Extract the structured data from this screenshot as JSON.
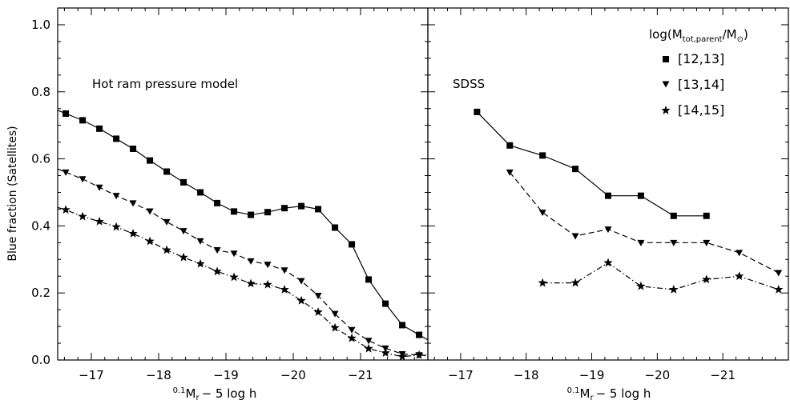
{
  "chart_data": [
    {
      "type": "line",
      "panel": "left",
      "annotation": "Hot ram pressure model",
      "xlabel_prefix": "0.1",
      "xlabel_main": "M",
      "xlabel_sub": "r",
      "xlabel_suffix": "− 5 log h",
      "ylabel": "Blue fraction (Satellites)",
      "xlim": [
        -16.5,
        -22.0
      ],
      "ylim": [
        0.0,
        1.05
      ],
      "x_ticks": [
        -17,
        -18,
        -19,
        -20,
        -21
      ],
      "x_tick_labels": [
        "−17",
        "−18",
        "−19",
        "−20",
        "−21"
      ],
      "y_ticks": [
        0.0,
        0.2,
        0.4,
        0.6,
        0.8,
        1.0
      ],
      "y_tick_labels": [
        "0.0",
        "0.2",
        "0.4",
        "0.6",
        "0.8",
        "1.0"
      ],
      "series": [
        {
          "marker": "square",
          "linestyle": "solid",
          "x": [
            -16.5,
            -16.62,
            -16.87,
            -17.12,
            -17.37,
            -17.62,
            -17.87,
            -18.12,
            -18.37,
            -18.62,
            -18.87,
            -19.12,
            -19.37,
            -19.62,
            -19.87,
            -20.12,
            -20.37,
            -20.62,
            -20.87,
            -21.12,
            -21.37,
            -21.62,
            -21.87,
            -22.0
          ],
          "y": [
            0.745,
            0.735,
            0.715,
            0.69,
            0.66,
            0.63,
            0.595,
            0.562,
            0.53,
            0.5,
            0.468,
            0.443,
            0.433,
            0.441,
            0.453,
            0.459,
            0.45,
            0.395,
            0.345,
            0.24,
            0.168,
            0.104,
            0.075,
            0.06
          ],
          "marked": [
            false,
            true,
            true,
            true,
            true,
            true,
            true,
            true,
            true,
            true,
            true,
            true,
            true,
            true,
            true,
            true,
            true,
            true,
            true,
            true,
            true,
            true,
            true,
            false
          ]
        },
        {
          "marker": "triangle-down",
          "linestyle": "dashed",
          "x": [
            -16.5,
            -16.62,
            -16.87,
            -17.12,
            -17.37,
            -17.62,
            -17.87,
            -18.12,
            -18.37,
            -18.62,
            -18.87,
            -19.12,
            -19.37,
            -19.62,
            -19.87,
            -20.12,
            -20.37,
            -20.62,
            -20.87,
            -21.12,
            -21.37,
            -21.62,
            -21.87,
            -22.0
          ],
          "y": [
            0.57,
            0.56,
            0.54,
            0.515,
            0.49,
            0.468,
            0.444,
            0.412,
            0.385,
            0.355,
            0.328,
            0.318,
            0.295,
            0.285,
            0.268,
            0.236,
            0.192,
            0.138,
            0.09,
            0.058,
            0.035,
            0.018,
            0.015,
            0.012
          ],
          "marked": [
            false,
            true,
            true,
            true,
            true,
            true,
            true,
            true,
            true,
            true,
            true,
            true,
            true,
            true,
            true,
            true,
            true,
            true,
            true,
            true,
            true,
            true,
            true,
            false
          ]
        },
        {
          "marker": "star",
          "linestyle": "dashdot",
          "x": [
            -16.5,
            -16.62,
            -16.87,
            -17.12,
            -17.37,
            -17.62,
            -17.87,
            -18.12,
            -18.37,
            -18.62,
            -18.87,
            -19.12,
            -19.37,
            -19.62,
            -19.87,
            -20.12,
            -20.37,
            -20.62,
            -20.87,
            -21.12,
            -21.37,
            -21.62,
            -21.87,
            -22.0
          ],
          "y": [
            0.455,
            0.448,
            0.428,
            0.413,
            0.397,
            0.377,
            0.354,
            0.328,
            0.306,
            0.287,
            0.264,
            0.247,
            0.228,
            0.225,
            0.21,
            0.177,
            0.143,
            0.096,
            0.065,
            0.034,
            0.021,
            0.01,
            0.015,
            0.015
          ],
          "marked": [
            false,
            true,
            true,
            true,
            true,
            true,
            true,
            true,
            true,
            true,
            true,
            true,
            true,
            true,
            true,
            true,
            true,
            true,
            true,
            true,
            true,
            true,
            true,
            false
          ]
        }
      ]
    },
    {
      "type": "line",
      "panel": "right",
      "annotation": "SDSS",
      "xlabel_prefix": "0.1",
      "xlabel_main": "M",
      "xlabel_sub": "r",
      "xlabel_suffix": "− 5 log h",
      "xlim": [
        -16.5,
        -22.0
      ],
      "ylim": [
        0.0,
        1.05
      ],
      "x_ticks": [
        -17,
        -18,
        -19,
        -20,
        -21
      ],
      "x_tick_labels": [
        "−17",
        "−18",
        "−19",
        "−20",
        "−21"
      ],
      "y_ticks": [
        0.0,
        0.2,
        0.4,
        0.6,
        0.8,
        1.0
      ],
      "legend": {
        "title_main": "log(M",
        "title_sub": "tot,parent",
        "title_mid": "/M",
        "title_sub2": "⊙",
        "title_end": ")",
        "entries": [
          {
            "marker": "square",
            "label": "[12,13]"
          },
          {
            "marker": "triangle-down",
            "label": "[13,14]"
          },
          {
            "marker": "star",
            "label": "[14,15]"
          }
        ]
      },
      "series": [
        {
          "marker": "square",
          "linestyle": "solid",
          "x": [
            -17.25,
            -17.75,
            -18.25,
            -18.75,
            -19.25,
            -19.75,
            -20.25,
            -20.75
          ],
          "y": [
            0.74,
            0.64,
            0.61,
            0.57,
            0.49,
            0.49,
            0.43,
            0.43
          ]
        },
        {
          "marker": "triangle-down",
          "linestyle": "dashed",
          "x": [
            -17.75,
            -18.25,
            -18.75,
            -19.25,
            -19.75,
            -20.25,
            -20.75,
            -21.25,
            -21.85
          ],
          "y": [
            0.56,
            0.44,
            0.37,
            0.39,
            0.35,
            0.35,
            0.35,
            0.32,
            0.26
          ]
        },
        {
          "marker": "star",
          "linestyle": "dashdot",
          "x": [
            -18.25,
            -18.75,
            -19.25,
            -19.75,
            -20.25,
            -20.75,
            -21.25,
            -21.85
          ],
          "y": [
            0.23,
            0.23,
            0.29,
            0.22,
            0.21,
            0.24,
            0.25,
            0.21
          ]
        }
      ]
    }
  ]
}
